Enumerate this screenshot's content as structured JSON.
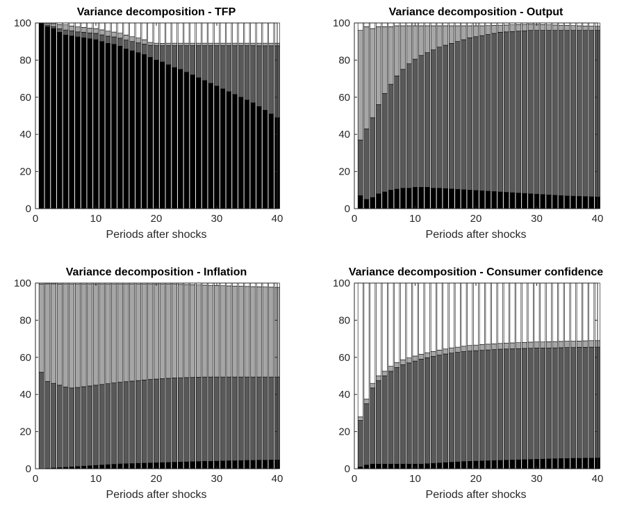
{
  "chart_data": [
    {
      "type": "bar",
      "stacked": true,
      "title": "Variance decomposition - TFP",
      "xlabel": "Periods after shocks",
      "ylabel": "",
      "xlim": [
        0,
        40
      ],
      "ylim": [
        0,
        100
      ],
      "xticks": [
        0,
        10,
        20,
        30,
        40
      ],
      "yticks": [
        0,
        20,
        40,
        60,
        80,
        100
      ],
      "x": [
        1,
        2,
        3,
        4,
        5,
        6,
        7,
        8,
        9,
        10,
        11,
        12,
        13,
        14,
        15,
        16,
        17,
        18,
        19,
        20,
        21,
        22,
        23,
        24,
        25,
        26,
        27,
        28,
        29,
        30,
        31,
        32,
        33,
        34,
        35,
        36,
        37,
        38,
        39,
        40
      ],
      "series": [
        {
          "color": "#000000",
          "values": [
            100.0,
            98.0,
            97.0,
            95.0,
            93.5,
            93.0,
            92.5,
            92.0,
            91.5,
            91.0,
            90.0,
            89.0,
            88.5,
            87.5,
            86.0,
            85.0,
            84.0,
            83.0,
            81.5,
            80.0,
            79.0,
            77.5,
            76.0,
            75.0,
            73.5,
            72.0,
            70.5,
            69.0,
            67.5,
            66.0,
            64.5,
            63.0,
            61.5,
            60.0,
            58.5,
            57.0,
            55.0,
            53.0,
            51.0,
            49.0
          ]
        },
        {
          "color": "#595959",
          "values": [
            0.0,
            0.7,
            1.1,
            1.9,
            2.7,
            2.8,
            2.7,
            3.0,
            3.1,
            3.4,
            3.6,
            3.9,
            4.0,
            4.3,
            4.8,
            5.0,
            5.3,
            5.6,
            6.5,
            7.8,
            8.8,
            10.3,
            11.8,
            12.8,
            14.3,
            15.8,
            17.3,
            18.8,
            20.3,
            21.8,
            23.3,
            24.8,
            26.3,
            27.8,
            29.3,
            30.8,
            32.7,
            34.7,
            36.7,
            38.7
          ]
        },
        {
          "color": "#a6a6a6",
          "values": [
            0.0,
            0.9,
            1.5,
            2.2,
            2.8,
            2.6,
            2.7,
            2.6,
            2.6,
            2.6,
            2.7,
            2.7,
            2.6,
            2.7,
            2.7,
            2.6,
            2.6,
            2.4,
            1.5,
            1.3,
            1.2,
            1.3,
            1.3,
            1.3,
            1.3,
            1.3,
            1.3,
            1.3,
            1.3,
            1.3,
            1.3,
            1.3,
            1.3,
            1.3,
            1.3,
            1.3,
            1.4,
            1.4,
            1.4,
            1.4
          ]
        },
        {
          "color": "#ffffff",
          "values": [
            0.0,
            0.4,
            0.4,
            0.9,
            1.0,
            1.6,
            2.1,
            2.4,
            2.8,
            3.0,
            3.7,
            4.4,
            4.9,
            5.5,
            6.5,
            7.4,
            8.1,
            9.0,
            10.5,
            10.9,
            11.0,
            10.9,
            10.9,
            10.9,
            10.9,
            10.9,
            10.9,
            10.9,
            10.9,
            10.9,
            10.9,
            10.9,
            10.9,
            10.9,
            10.9,
            10.9,
            10.9,
            10.9,
            10.9,
            10.9
          ]
        }
      ]
    },
    {
      "type": "bar",
      "stacked": true,
      "title": "Variance decomposition - Output",
      "xlabel": "Periods after shocks",
      "ylabel": "",
      "xlim": [
        0,
        40
      ],
      "ylim": [
        0,
        100
      ],
      "xticks": [
        0,
        10,
        20,
        30,
        40
      ],
      "yticks": [
        0,
        20,
        40,
        60,
        80,
        100
      ],
      "x": [
        1,
        2,
        3,
        4,
        5,
        6,
        7,
        8,
        9,
        10,
        11,
        12,
        13,
        14,
        15,
        16,
        17,
        18,
        19,
        20,
        21,
        22,
        23,
        24,
        25,
        26,
        27,
        28,
        29,
        30,
        31,
        32,
        33,
        34,
        35,
        36,
        37,
        38,
        39,
        40
      ],
      "series": [
        {
          "color": "#000000",
          "values": [
            7.0,
            5.0,
            6.0,
            8.0,
            9.0,
            10.0,
            10.5,
            11.0,
            11.0,
            11.5,
            11.5,
            11.5,
            11.0,
            11.0,
            10.8,
            10.6,
            10.4,
            10.2,
            10.0,
            9.8,
            9.6,
            9.4,
            9.2,
            9.0,
            8.8,
            8.6,
            8.4,
            8.2,
            8.0,
            7.8,
            7.6,
            7.4,
            7.2,
            7.0,
            6.8,
            6.7,
            6.6,
            6.5,
            6.4,
            6.3
          ]
        },
        {
          "color": "#595959",
          "values": [
            30.0,
            38.0,
            43.0,
            48.0,
            53.0,
            57.0,
            61.0,
            64.0,
            67.0,
            69.0,
            71.0,
            72.5,
            74.5,
            76.0,
            77.2,
            78.4,
            79.6,
            80.8,
            82.0,
            82.8,
            83.6,
            84.4,
            85.2,
            86.0,
            86.4,
            86.8,
            87.2,
            87.6,
            88.0,
            88.2,
            88.4,
            88.6,
            88.8,
            89.0,
            89.2,
            89.3,
            89.4,
            89.5,
            89.6,
            89.7
          ]
        },
        {
          "color": "#a6a6a6",
          "values": [
            59.0,
            55.0,
            48.0,
            42.0,
            36.0,
            31.0,
            27.0,
            23.5,
            20.5,
            18.0,
            16.0,
            14.5,
            13.0,
            11.5,
            10.5,
            9.5,
            8.5,
            7.5,
            6.5,
            5.9,
            5.3,
            4.8,
            4.3,
            3.8,
            3.7,
            3.6,
            3.5,
            3.4,
            3.3,
            3.2,
            3.1,
            3.0,
            2.9,
            2.8,
            2.7,
            2.6,
            2.5,
            2.4,
            2.3,
            2.2
          ]
        },
        {
          "color": "#ffffff",
          "values": [
            4.0,
            2.0,
            3.0,
            2.0,
            2.0,
            2.0,
            1.5,
            1.5,
            1.5,
            1.5,
            1.5,
            1.5,
            1.5,
            1.5,
            1.5,
            1.5,
            1.5,
            1.5,
            1.5,
            1.5,
            1.5,
            1.4,
            1.3,
            1.2,
            1.1,
            1.0,
            0.9,
            0.8,
            0.7,
            0.8,
            0.9,
            1.0,
            1.1,
            1.2,
            1.3,
            1.4,
            1.5,
            1.6,
            1.7,
            1.8
          ]
        }
      ]
    },
    {
      "type": "bar",
      "stacked": true,
      "title": "Variance decomposition - Inflation",
      "xlabel": "Periods after shocks",
      "ylabel": "",
      "xlim": [
        0,
        40
      ],
      "ylim": [
        0,
        100
      ],
      "xticks": [
        0,
        10,
        20,
        30,
        40
      ],
      "yticks": [
        0,
        20,
        40,
        60,
        80,
        100
      ],
      "x": [
        1,
        2,
        3,
        4,
        5,
        6,
        7,
        8,
        9,
        10,
        11,
        12,
        13,
        14,
        15,
        16,
        17,
        18,
        19,
        20,
        21,
        22,
        23,
        24,
        25,
        26,
        27,
        28,
        29,
        30,
        31,
        32,
        33,
        34,
        35,
        36,
        37,
        38,
        39,
        40
      ],
      "series": [
        {
          "color": "#000000",
          "values": [
            0.0,
            0.2,
            0.4,
            0.6,
            0.8,
            1.0,
            1.2,
            1.4,
            1.6,
            1.8,
            2.0,
            2.2,
            2.4,
            2.6,
            2.7,
            2.8,
            2.9,
            3.0,
            3.1,
            3.2,
            3.3,
            3.4,
            3.5,
            3.6,
            3.7,
            3.8,
            3.9,
            4.0,
            4.0,
            4.1,
            4.2,
            4.3,
            4.3,
            4.4,
            4.5,
            4.5,
            4.6,
            4.6,
            4.7,
            4.7
          ]
        },
        {
          "color": "#595959",
          "values": [
            52.0,
            46.8,
            45.6,
            44.4,
            43.2,
            42.5,
            42.6,
            42.8,
            43.0,
            43.2,
            43.4,
            43.6,
            43.8,
            44.0,
            44.2,
            44.4,
            44.6,
            44.8,
            45.0,
            45.1,
            45.2,
            45.3,
            45.4,
            45.4,
            45.4,
            45.4,
            45.4,
            45.4,
            45.4,
            45.3,
            45.2,
            45.1,
            45.1,
            45.0,
            44.9,
            44.9,
            44.8,
            44.8,
            44.7,
            44.7
          ]
        },
        {
          "color": "#a6a6a6",
          "values": [
            47.5,
            52.6,
            53.6,
            54.5,
            55.4,
            55.9,
            55.6,
            55.2,
            54.8,
            54.4,
            54.0,
            53.6,
            53.2,
            52.8,
            52.5,
            52.2,
            51.9,
            51.6,
            51.3,
            51.1,
            50.9,
            50.7,
            50.5,
            50.3,
            50.1,
            49.9,
            49.7,
            49.5,
            49.4,
            49.3,
            49.2,
            49.1,
            49.0,
            48.9,
            48.8,
            48.7,
            48.6,
            48.5,
            48.4,
            48.3
          ]
        },
        {
          "color": "#ffffff",
          "values": [
            0.5,
            0.4,
            0.4,
            0.5,
            0.6,
            0.6,
            0.6,
            0.6,
            0.6,
            0.6,
            0.6,
            0.6,
            0.6,
            0.6,
            0.6,
            0.6,
            0.6,
            0.6,
            0.6,
            0.6,
            0.6,
            0.6,
            0.6,
            0.7,
            0.8,
            0.9,
            1.0,
            1.1,
            1.2,
            1.3,
            1.4,
            1.5,
            1.6,
            1.7,
            1.8,
            1.9,
            2.0,
            2.1,
            2.2,
            2.3
          ]
        }
      ]
    },
    {
      "type": "bar",
      "stacked": true,
      "title": "Variance decomposition - Consumer confidence",
      "xlabel": "Periods after shocks",
      "ylabel": "",
      "xlim": [
        0,
        40
      ],
      "ylim": [
        0,
        100
      ],
      "xticks": [
        0,
        10,
        20,
        30,
        40
      ],
      "yticks": [
        0,
        20,
        40,
        60,
        80,
        100
      ],
      "x": [
        1,
        2,
        3,
        4,
        5,
        6,
        7,
        8,
        9,
        10,
        11,
        12,
        13,
        14,
        15,
        16,
        17,
        18,
        19,
        20,
        21,
        22,
        23,
        24,
        25,
        26,
        27,
        28,
        29,
        30,
        31,
        32,
        33,
        34,
        35,
        36,
        37,
        38,
        39,
        40
      ],
      "series": [
        {
          "color": "#000000",
          "values": [
            1.0,
            2.0,
            2.5,
            2.5,
            2.5,
            2.5,
            2.5,
            2.5,
            2.5,
            2.5,
            2.5,
            2.7,
            2.9,
            3.1,
            3.3,
            3.5,
            3.7,
            3.9,
            4.0,
            4.1,
            4.2,
            4.3,
            4.4,
            4.5,
            4.6,
            4.7,
            4.8,
            4.9,
            5.0,
            5.1,
            5.2,
            5.3,
            5.4,
            5.5,
            5.5,
            5.6,
            5.6,
            5.7,
            5.7,
            5.8
          ]
        },
        {
          "color": "#595959",
          "values": [
            25.0,
            33.0,
            41.0,
            45.0,
            47.5,
            50.0,
            52.0,
            53.5,
            54.5,
            55.5,
            56.5,
            57.1,
            57.6,
            58.1,
            58.5,
            58.8,
            59.0,
            59.2,
            59.4,
            59.5,
            59.6,
            59.7,
            59.8,
            59.9,
            59.9,
            59.9,
            59.9,
            59.9,
            59.9,
            59.9,
            59.8,
            59.7,
            59.7,
            59.7,
            59.8,
            59.7,
            59.8,
            59.7,
            59.8,
            59.7
          ]
        },
        {
          "color": "#a6a6a6",
          "values": [
            2.0,
            2.5,
            2.5,
            2.5,
            2.5,
            2.7,
            2.7,
            2.7,
            2.7,
            2.7,
            2.7,
            2.7,
            2.7,
            2.7,
            2.7,
            2.8,
            2.8,
            2.9,
            3.0,
            3.0,
            3.1,
            3.1,
            3.1,
            3.1,
            3.2,
            3.2,
            3.2,
            3.2,
            3.3,
            3.3,
            3.3,
            3.4,
            3.4,
            3.4,
            3.4,
            3.4,
            3.4,
            3.5,
            3.5,
            3.5
          ]
        },
        {
          "color": "#ffffff",
          "values": [
            72.0,
            62.5,
            54.0,
            50.0,
            47.5,
            44.8,
            42.8,
            41.3,
            40.3,
            39.3,
            38.3,
            37.5,
            36.8,
            36.1,
            35.5,
            34.9,
            34.5,
            34.0,
            33.6,
            33.4,
            33.1,
            32.9,
            32.7,
            32.5,
            32.3,
            32.2,
            32.1,
            32.0,
            31.8,
            31.7,
            31.7,
            31.6,
            31.5,
            31.4,
            31.3,
            31.3,
            31.2,
            31.1,
            31.0,
            31.0
          ]
        }
      ]
    }
  ]
}
